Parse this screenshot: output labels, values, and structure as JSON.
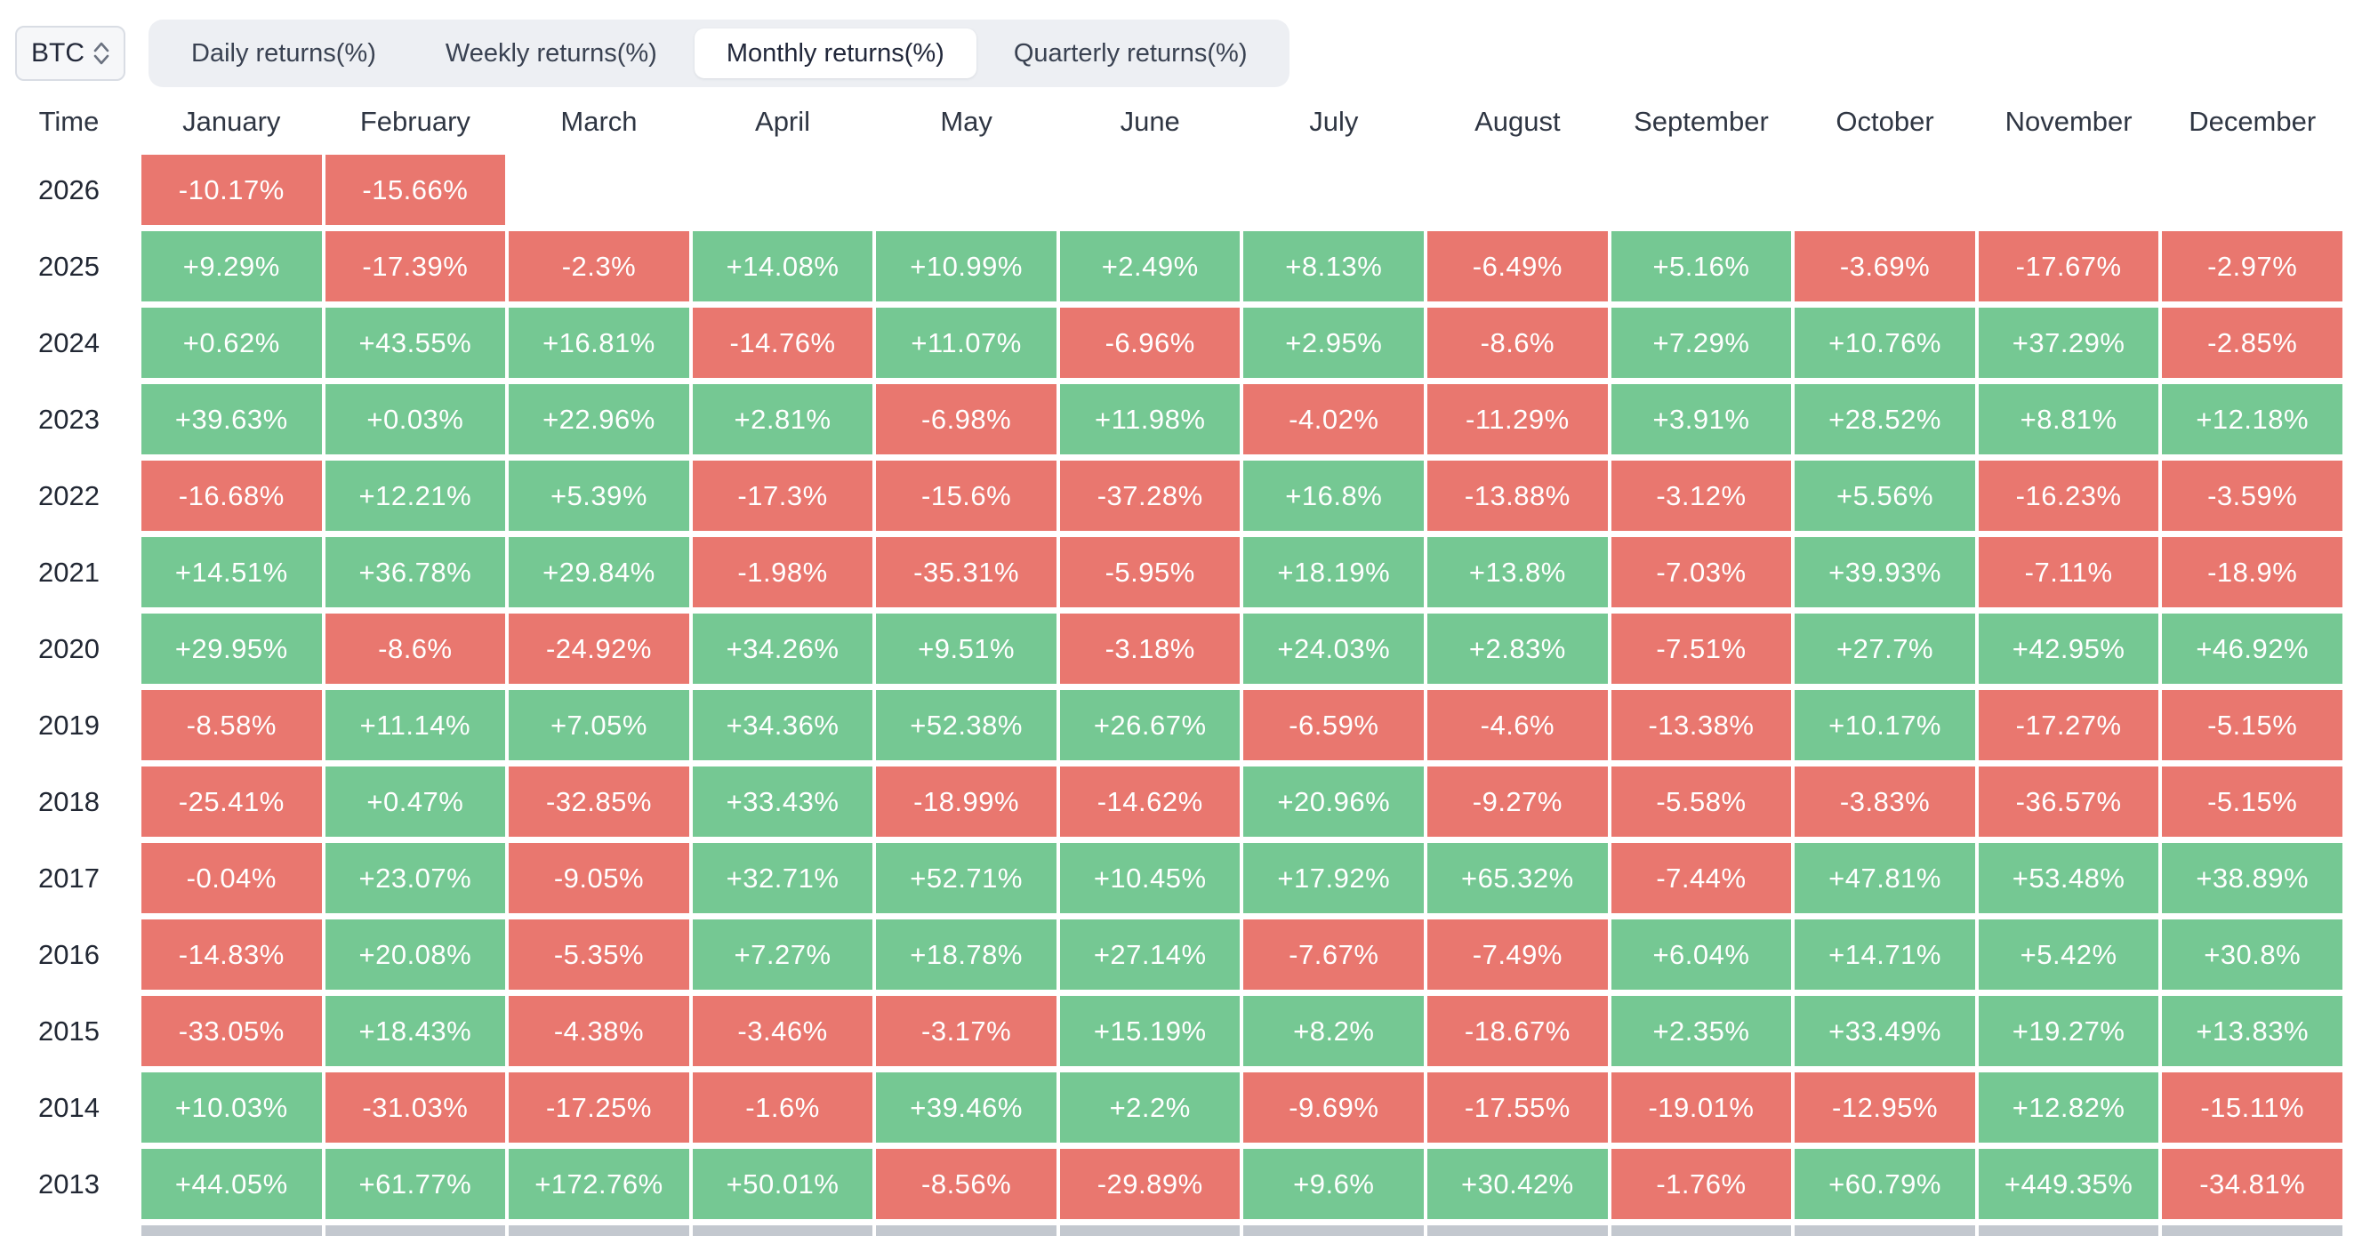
{
  "controls": {
    "asset_selector": {
      "value": "BTC"
    },
    "tabs": [
      {
        "label": "Daily returns(%)",
        "active": false
      },
      {
        "label": "Weekly returns(%)",
        "active": false
      },
      {
        "label": "Monthly returns(%)",
        "active": true
      },
      {
        "label": "Quarterly returns(%)",
        "active": false
      }
    ]
  },
  "colors": {
    "positive": "#75c893",
    "negative": "#e9776f"
  },
  "chart_data": {
    "type": "heatmap",
    "title": "BTC Monthly returns(%)",
    "time_header": "Time",
    "month_headers": [
      "January",
      "February",
      "March",
      "April",
      "May",
      "June",
      "July",
      "August",
      "September",
      "October",
      "November",
      "December"
    ],
    "rows": [
      {
        "year": "2026",
        "values": [
          "-10.17%",
          "-15.66%",
          null,
          null,
          null,
          null,
          null,
          null,
          null,
          null,
          null,
          null
        ]
      },
      {
        "year": "2025",
        "values": [
          "+9.29%",
          "-17.39%",
          "-2.3%",
          "+14.08%",
          "+10.99%",
          "+2.49%",
          "+8.13%",
          "-6.49%",
          "+5.16%",
          "-3.69%",
          "-17.67%",
          "-2.97%"
        ]
      },
      {
        "year": "2024",
        "values": [
          "+0.62%",
          "+43.55%",
          "+16.81%",
          "-14.76%",
          "+11.07%",
          "-6.96%",
          "+2.95%",
          "-8.6%",
          "+7.29%",
          "+10.76%",
          "+37.29%",
          "-2.85%"
        ]
      },
      {
        "year": "2023",
        "values": [
          "+39.63%",
          "+0.03%",
          "+22.96%",
          "+2.81%",
          "-6.98%",
          "+11.98%",
          "-4.02%",
          "-11.29%",
          "+3.91%",
          "+28.52%",
          "+8.81%",
          "+12.18%"
        ]
      },
      {
        "year": "2022",
        "values": [
          "-16.68%",
          "+12.21%",
          "+5.39%",
          "-17.3%",
          "-15.6%",
          "-37.28%",
          "+16.8%",
          "-13.88%",
          "-3.12%",
          "+5.56%",
          "-16.23%",
          "-3.59%"
        ]
      },
      {
        "year": "2021",
        "values": [
          "+14.51%",
          "+36.78%",
          "+29.84%",
          "-1.98%",
          "-35.31%",
          "-5.95%",
          "+18.19%",
          "+13.8%",
          "-7.03%",
          "+39.93%",
          "-7.11%",
          "-18.9%"
        ]
      },
      {
        "year": "2020",
        "values": [
          "+29.95%",
          "-8.6%",
          "-24.92%",
          "+34.26%",
          "+9.51%",
          "-3.18%",
          "+24.03%",
          "+2.83%",
          "-7.51%",
          "+27.7%",
          "+42.95%",
          "+46.92%"
        ]
      },
      {
        "year": "2019",
        "values": [
          "-8.58%",
          "+11.14%",
          "+7.05%",
          "+34.36%",
          "+52.38%",
          "+26.67%",
          "-6.59%",
          "-4.6%",
          "-13.38%",
          "+10.17%",
          "-17.27%",
          "-5.15%"
        ]
      },
      {
        "year": "2018",
        "values": [
          "-25.41%",
          "+0.47%",
          "-32.85%",
          "+33.43%",
          "-18.99%",
          "-14.62%",
          "+20.96%",
          "-9.27%",
          "-5.58%",
          "-3.83%",
          "-36.57%",
          "-5.15%"
        ]
      },
      {
        "year": "2017",
        "values": [
          "-0.04%",
          "+23.07%",
          "-9.05%",
          "+32.71%",
          "+52.71%",
          "+10.45%",
          "+17.92%",
          "+65.32%",
          "-7.44%",
          "+47.81%",
          "+53.48%",
          "+38.89%"
        ]
      },
      {
        "year": "2016",
        "values": [
          "-14.83%",
          "+20.08%",
          "-5.35%",
          "+7.27%",
          "+18.78%",
          "+27.14%",
          "-7.67%",
          "-7.49%",
          "+6.04%",
          "+14.71%",
          "+5.42%",
          "+30.8%"
        ]
      },
      {
        "year": "2015",
        "values": [
          "-33.05%",
          "+18.43%",
          "-4.38%",
          "-3.46%",
          "-3.17%",
          "+15.19%",
          "+8.2%",
          "-18.67%",
          "+2.35%",
          "+33.49%",
          "+19.27%",
          "+13.83%"
        ]
      },
      {
        "year": "2014",
        "values": [
          "+10.03%",
          "-31.03%",
          "-17.25%",
          "-1.6%",
          "+39.46%",
          "+2.2%",
          "-9.69%",
          "-17.55%",
          "-19.01%",
          "-12.95%",
          "+12.82%",
          "-15.11%"
        ]
      },
      {
        "year": "2013",
        "values": [
          "+44.05%",
          "+61.77%",
          "+172.76%",
          "+50.01%",
          "-8.56%",
          "-29.89%",
          "+9.6%",
          "+30.42%",
          "-1.76%",
          "+60.79%",
          "+449.35%",
          "-34.81%"
        ]
      }
    ]
  }
}
